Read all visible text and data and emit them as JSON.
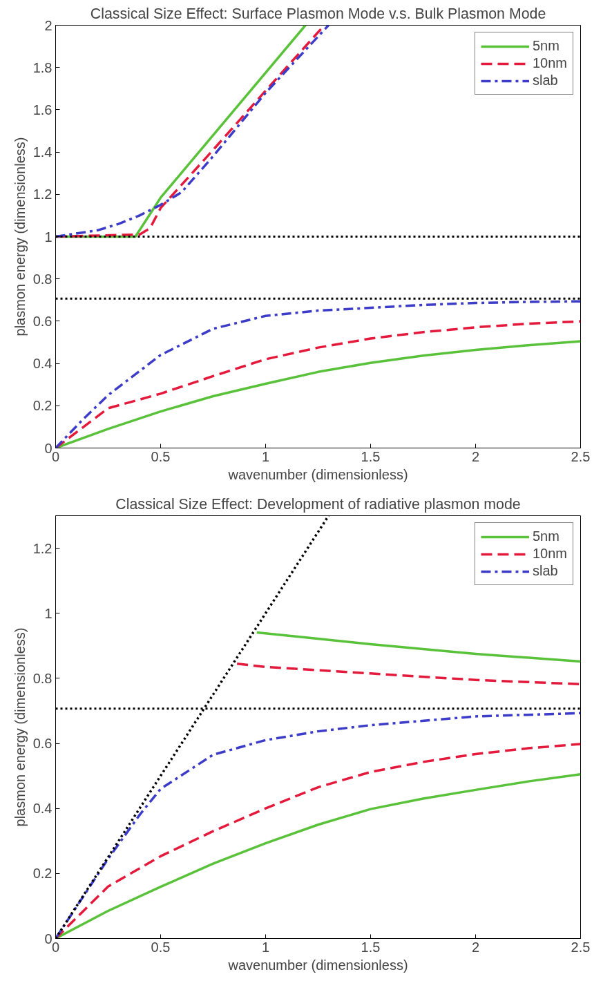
{
  "chart_data": [
    {
      "type": "line",
      "title": "Classical Size Effect: Surface Plasmon Mode v.s. Bulk Plasmon Mode",
      "xlabel": "wavenumber (dimensionless)",
      "ylabel": "plasmon energy (dimensionless)",
      "xlim": [
        0,
        2.5
      ],
      "ylim": [
        0,
        2
      ],
      "xticks": [
        0,
        0.5,
        1,
        1.5,
        2,
        2.5
      ],
      "yticks": [
        0,
        0.2,
        0.4,
        0.6,
        0.8,
        1,
        1.2,
        1.4,
        1.6,
        1.8,
        2
      ],
      "grid": false,
      "legend": "top right",
      "ref_lines": [
        {
          "axis": "y",
          "value": 1,
          "color": "#000000",
          "line_style": "dotted"
        },
        {
          "axis": "y",
          "value": 0.707,
          "color": "#000000",
          "line_style": "dotted"
        }
      ],
      "series": [
        {
          "name": "5nm",
          "color": "#59c23a",
          "line_style": "solid",
          "x": [
            0,
            0.25,
            0.5,
            0.75,
            1,
            1.25,
            1.5,
            1.75,
            2,
            2.25,
            2.5
          ],
          "values": [
            0,
            0.09,
            0.173,
            0.245,
            0.304,
            0.36,
            0.403,
            0.437,
            0.464,
            0.486,
            0.505
          ]
        },
        {
          "name": "10nm",
          "color": "#e31a3c",
          "line_style": "dashed",
          "x": [
            0,
            0.25,
            0.5,
            0.75,
            1,
            1.25,
            1.5,
            1.75,
            2,
            2.25,
            2.5
          ],
          "values": [
            0,
            0.188,
            0.257,
            0.34,
            0.42,
            0.475,
            0.518,
            0.548,
            0.571,
            0.588,
            0.599
          ]
        },
        {
          "name": "slab",
          "color": "#3c3cc8",
          "line_style": "dashdot",
          "x": [
            0,
            0.125,
            0.25,
            0.5,
            0.75,
            1,
            1.25,
            1.5,
            1.75,
            2,
            2.25,
            2.5
          ],
          "values": [
            0,
            0.13,
            0.25,
            0.44,
            0.564,
            0.625,
            0.65,
            0.663,
            0.677,
            0.686,
            0.691,
            0.694
          ]
        },
        {
          "color": "#59c23a",
          "line_style": "solid",
          "x": [
            0,
            0.38,
            0.5,
            1.19
          ],
          "values": [
            1,
            1.0,
            1.184,
            2.0
          ]
        },
        {
          "color": "#e31a3c",
          "line_style": "dashed",
          "x": [
            0,
            0.4,
            0.45,
            0.5,
            0.75,
            1.0,
            1.28
          ],
          "values": [
            1,
            1.01,
            1.04,
            1.135,
            1.41,
            1.69,
            2.0
          ]
        },
        {
          "color": "#3c3cc8",
          "line_style": "dashdot",
          "x": [
            0,
            0.2,
            0.3,
            0.4,
            0.5,
            0.6,
            0.75,
            1.0,
            1.3
          ],
          "values": [
            1,
            1.03,
            1.06,
            1.1,
            1.15,
            1.21,
            1.38,
            1.68,
            2.0
          ]
        }
      ]
    },
    {
      "type": "line",
      "title": "Classical Size Effect: Development of radiative plasmon mode",
      "xlabel": "wavenumber (dimensionless)",
      "ylabel": "plasmon energy (dimensionless)",
      "xlim": [
        0,
        2.5
      ],
      "ylim": [
        0,
        1.3
      ],
      "xticks": [
        0,
        0.5,
        1,
        1.5,
        2,
        2.5
      ],
      "yticks": [
        0,
        0.2,
        0.4,
        0.6,
        0.8,
        1,
        1.2
      ],
      "grid": false,
      "legend": "top right",
      "ref_lines": [
        {
          "axis": "y",
          "value": 0.707,
          "color": "#000000",
          "line_style": "dotted"
        }
      ],
      "series": [
        {
          "name": "5nm",
          "color": "#59c23a",
          "line_style": "solid",
          "x": [
            0,
            0.25,
            0.5,
            0.75,
            1,
            1.25,
            1.5,
            1.75,
            2,
            2.25,
            2.5
          ],
          "values": [
            0,
            0.085,
            0.159,
            0.23,
            0.293,
            0.35,
            0.398,
            0.43,
            0.457,
            0.483,
            0.505
          ]
        },
        {
          "name": "10nm",
          "color": "#e31a3c",
          "line_style": "dashed",
          "x": [
            0,
            0.25,
            0.5,
            0.75,
            1,
            1.25,
            1.5,
            1.75,
            2,
            2.25,
            2.5
          ],
          "values": [
            0,
            0.16,
            0.253,
            0.33,
            0.4,
            0.465,
            0.512,
            0.543,
            0.567,
            0.585,
            0.598
          ]
        },
        {
          "name": "slab",
          "color": "#3c3cc8",
          "line_style": "dashdot",
          "x": [
            0,
            0.25,
            0.4,
            0.5,
            0.75,
            1,
            1.25,
            1.5,
            2,
            2.5
          ],
          "values": [
            0,
            0.245,
            0.38,
            0.46,
            0.565,
            0.61,
            0.637,
            0.656,
            0.683,
            0.693
          ]
        },
        {
          "color": "#59c23a",
          "line_style": "solid",
          "x": [
            0.958,
            1.2,
            1.5,
            2,
            2.5
          ],
          "values": [
            0.941,
            0.925,
            0.905,
            0.875,
            0.852
          ]
        },
        {
          "color": "#e31a3c",
          "line_style": "dashed",
          "x": [
            0.864,
            1,
            1.5,
            2,
            2.5
          ],
          "values": [
            0.845,
            0.835,
            0.815,
            0.795,
            0.782
          ]
        },
        {
          "color": "#000000",
          "line_style": "dotted",
          "x": [
            0,
            1.3
          ],
          "values": [
            0,
            1.3
          ]
        }
      ]
    }
  ]
}
